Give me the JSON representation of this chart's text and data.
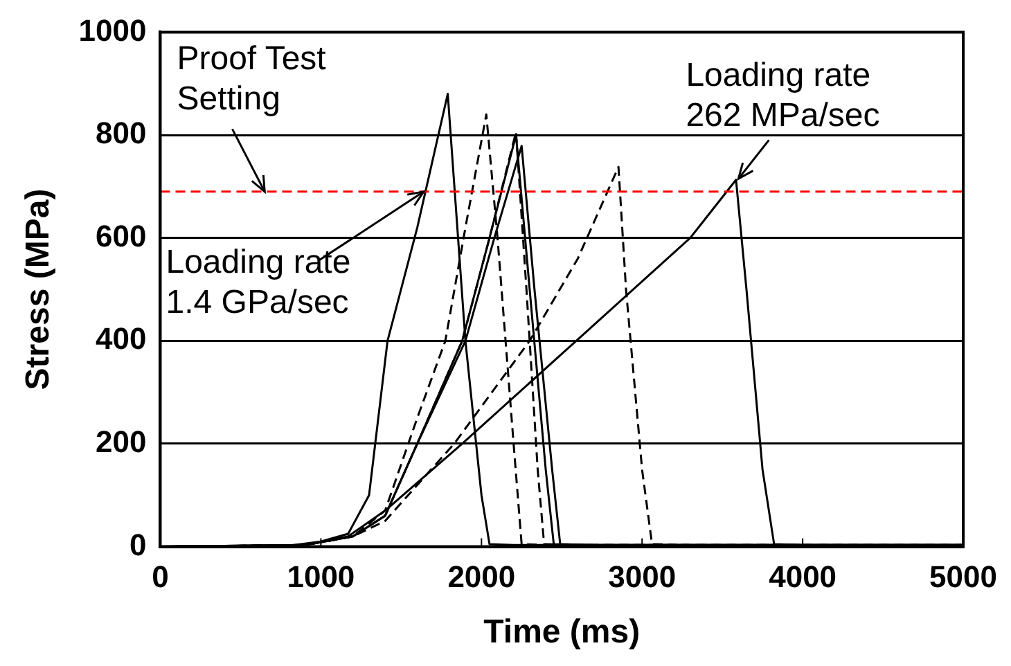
{
  "chart_data": {
    "type": "line",
    "xlabel": "Time (ms)",
    "ylabel": "Stress (MPa)",
    "xlim": [
      0,
      5000
    ],
    "ylim": [
      0,
      1000
    ],
    "xticks": [
      0,
      1000,
      2000,
      3000,
      4000,
      5000
    ],
    "yticks": [
      0,
      200,
      400,
      600,
      800,
      1000
    ],
    "grid": "y",
    "legend": false,
    "marker": "none",
    "series": [
      {
        "color": "#000000",
        "line_style": "solid",
        "x": [
          0,
          800,
          1000,
          1170,
          1300,
          1415,
          1600,
          1790,
          1900,
          2000,
          2050,
          2200,
          5000
        ],
        "values": [
          0,
          2,
          10,
          25,
          100,
          400,
          620,
          880,
          400,
          100,
          5,
          3,
          3
        ]
      },
      {
        "color": "#000000",
        "line_style": "dashed",
        "x": [
          0,
          900,
          1200,
          1400,
          1600,
          1775,
          1900,
          2030,
          2100,
          2200,
          2250,
          2400,
          5000
        ],
        "values": [
          0,
          3,
          20,
          70,
          250,
          400,
          620,
          840,
          600,
          200,
          5,
          3,
          3
        ]
      },
      {
        "color": "#000000",
        "line_style": "dashed",
        "x": [
          0,
          900,
          1200,
          1400,
          1600,
          1880,
          2050,
          2215,
          2280,
          2350,
          2390,
          2600,
          5000
        ],
        "values": [
          0,
          3,
          20,
          60,
          200,
          400,
          600,
          806,
          500,
          150,
          5,
          3,
          3
        ]
      },
      {
        "color": "#000000",
        "line_style": "solid",
        "x": [
          0,
          900,
          1200,
          1400,
          1600,
          1880,
          2050,
          2215,
          2300,
          2400,
          2450,
          2700,
          5000
        ],
        "values": [
          0,
          3,
          20,
          60,
          200,
          400,
          600,
          800,
          500,
          150,
          5,
          3,
          3
        ]
      },
      {
        "color": "#000000",
        "line_style": "solid",
        "x": [
          0,
          900,
          1200,
          1400,
          1600,
          1900,
          2080,
          2250,
          2330,
          2440,
          2490,
          2700,
          5000
        ],
        "values": [
          0,
          3,
          20,
          60,
          200,
          400,
          600,
          779,
          500,
          150,
          5,
          3,
          3
        ]
      },
      {
        "color": "#000000",
        "line_style": "dashed",
        "x": [
          0,
          900,
          1200,
          1400,
          1830,
          2300,
          2600,
          2853,
          2900,
          3000,
          3062,
          3300,
          5000
        ],
        "values": [
          0,
          3,
          20,
          50,
          200,
          400,
          560,
          738,
          500,
          150,
          5,
          3,
          3
        ]
      },
      {
        "color": "#000000",
        "line_style": "solid",
        "x": [
          0,
          900,
          1170,
          1400,
          1880,
          2590,
          3300,
          3585,
          3650,
          3750,
          3822,
          4000,
          5000
        ],
        "values": [
          0,
          3,
          20,
          70,
          200,
          400,
          600,
          713,
          500,
          150,
          5,
          3,
          3
        ]
      }
    ],
    "ref_lines": [
      {
        "axis": "y",
        "value": 690,
        "color": "#ff0000",
        "line_style": "dashed"
      }
    ],
    "annotations": [
      {
        "text": "Proof Test Setting",
        "x": 650,
        "y": 690
      },
      {
        "text": "Loading rate 1.4 GPa/sec",
        "x": 1640,
        "y": 690
      },
      {
        "text": "Loading rate 262 MPa/sec",
        "x": 3600,
        "y": 715
      }
    ]
  }
}
